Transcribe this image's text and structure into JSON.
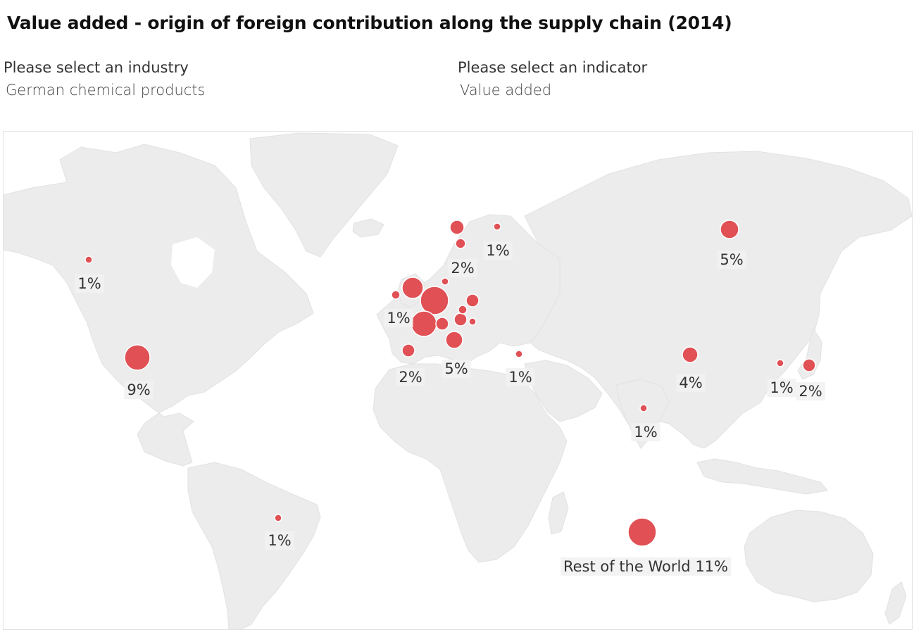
{
  "title": "Value added - origin of foreign contribution along the supply chain (2014)",
  "industry_selector": {
    "label": "Please select an industry",
    "value": "German chemical products"
  },
  "indicator_selector": {
    "label": "Please select an indicator",
    "value": "Value added"
  },
  "colors": {
    "bubble": "#e05055",
    "land": "#ececec",
    "background": "#ffffff"
  },
  "map_data": {
    "type": "proportional-symbol-map",
    "bubbles": [
      {
        "id": "canada",
        "label": "1%",
        "r": 5
      },
      {
        "id": "usa",
        "label": "9%",
        "r": 18
      },
      {
        "id": "brazil",
        "label": "1%",
        "r": 5
      },
      {
        "id": "ireland",
        "label": "1%",
        "r": 6
      },
      {
        "id": "uk",
        "label": "",
        "r": 15
      },
      {
        "id": "benelux",
        "label": "",
        "r": 20
      },
      {
        "id": "france",
        "label": "",
        "r": 18
      },
      {
        "id": "switzerland",
        "label": "",
        "r": 9
      },
      {
        "id": "spain",
        "label": "2%",
        "r": 9
      },
      {
        "id": "italy",
        "label": "5%",
        "r": 12
      },
      {
        "id": "austria",
        "label": "",
        "r": 9
      },
      {
        "id": "czech",
        "label": "",
        "r": 6
      },
      {
        "id": "poland",
        "label": "",
        "r": 9
      },
      {
        "id": "hungary",
        "label": "",
        "r": 5
      },
      {
        "id": "denmark",
        "label": "",
        "r": 5
      },
      {
        "id": "norway",
        "label": "",
        "r": 10
      },
      {
        "id": "sweden",
        "label": "2%",
        "r": 7
      },
      {
        "id": "finland",
        "label": "1%",
        "r": 5
      },
      {
        "id": "turkey",
        "label": "1%",
        "r": 5
      },
      {
        "id": "russia",
        "label": "5%",
        "r": 13
      },
      {
        "id": "china",
        "label": "4%",
        "r": 11
      },
      {
        "id": "korea",
        "label": "1%",
        "r": 5
      },
      {
        "id": "japan",
        "label": "2%",
        "r": 9
      },
      {
        "id": "india",
        "label": "1%",
        "r": 5
      },
      {
        "id": "rest-of-world",
        "label": "Rest of the World 11%",
        "r": 20
      }
    ]
  }
}
